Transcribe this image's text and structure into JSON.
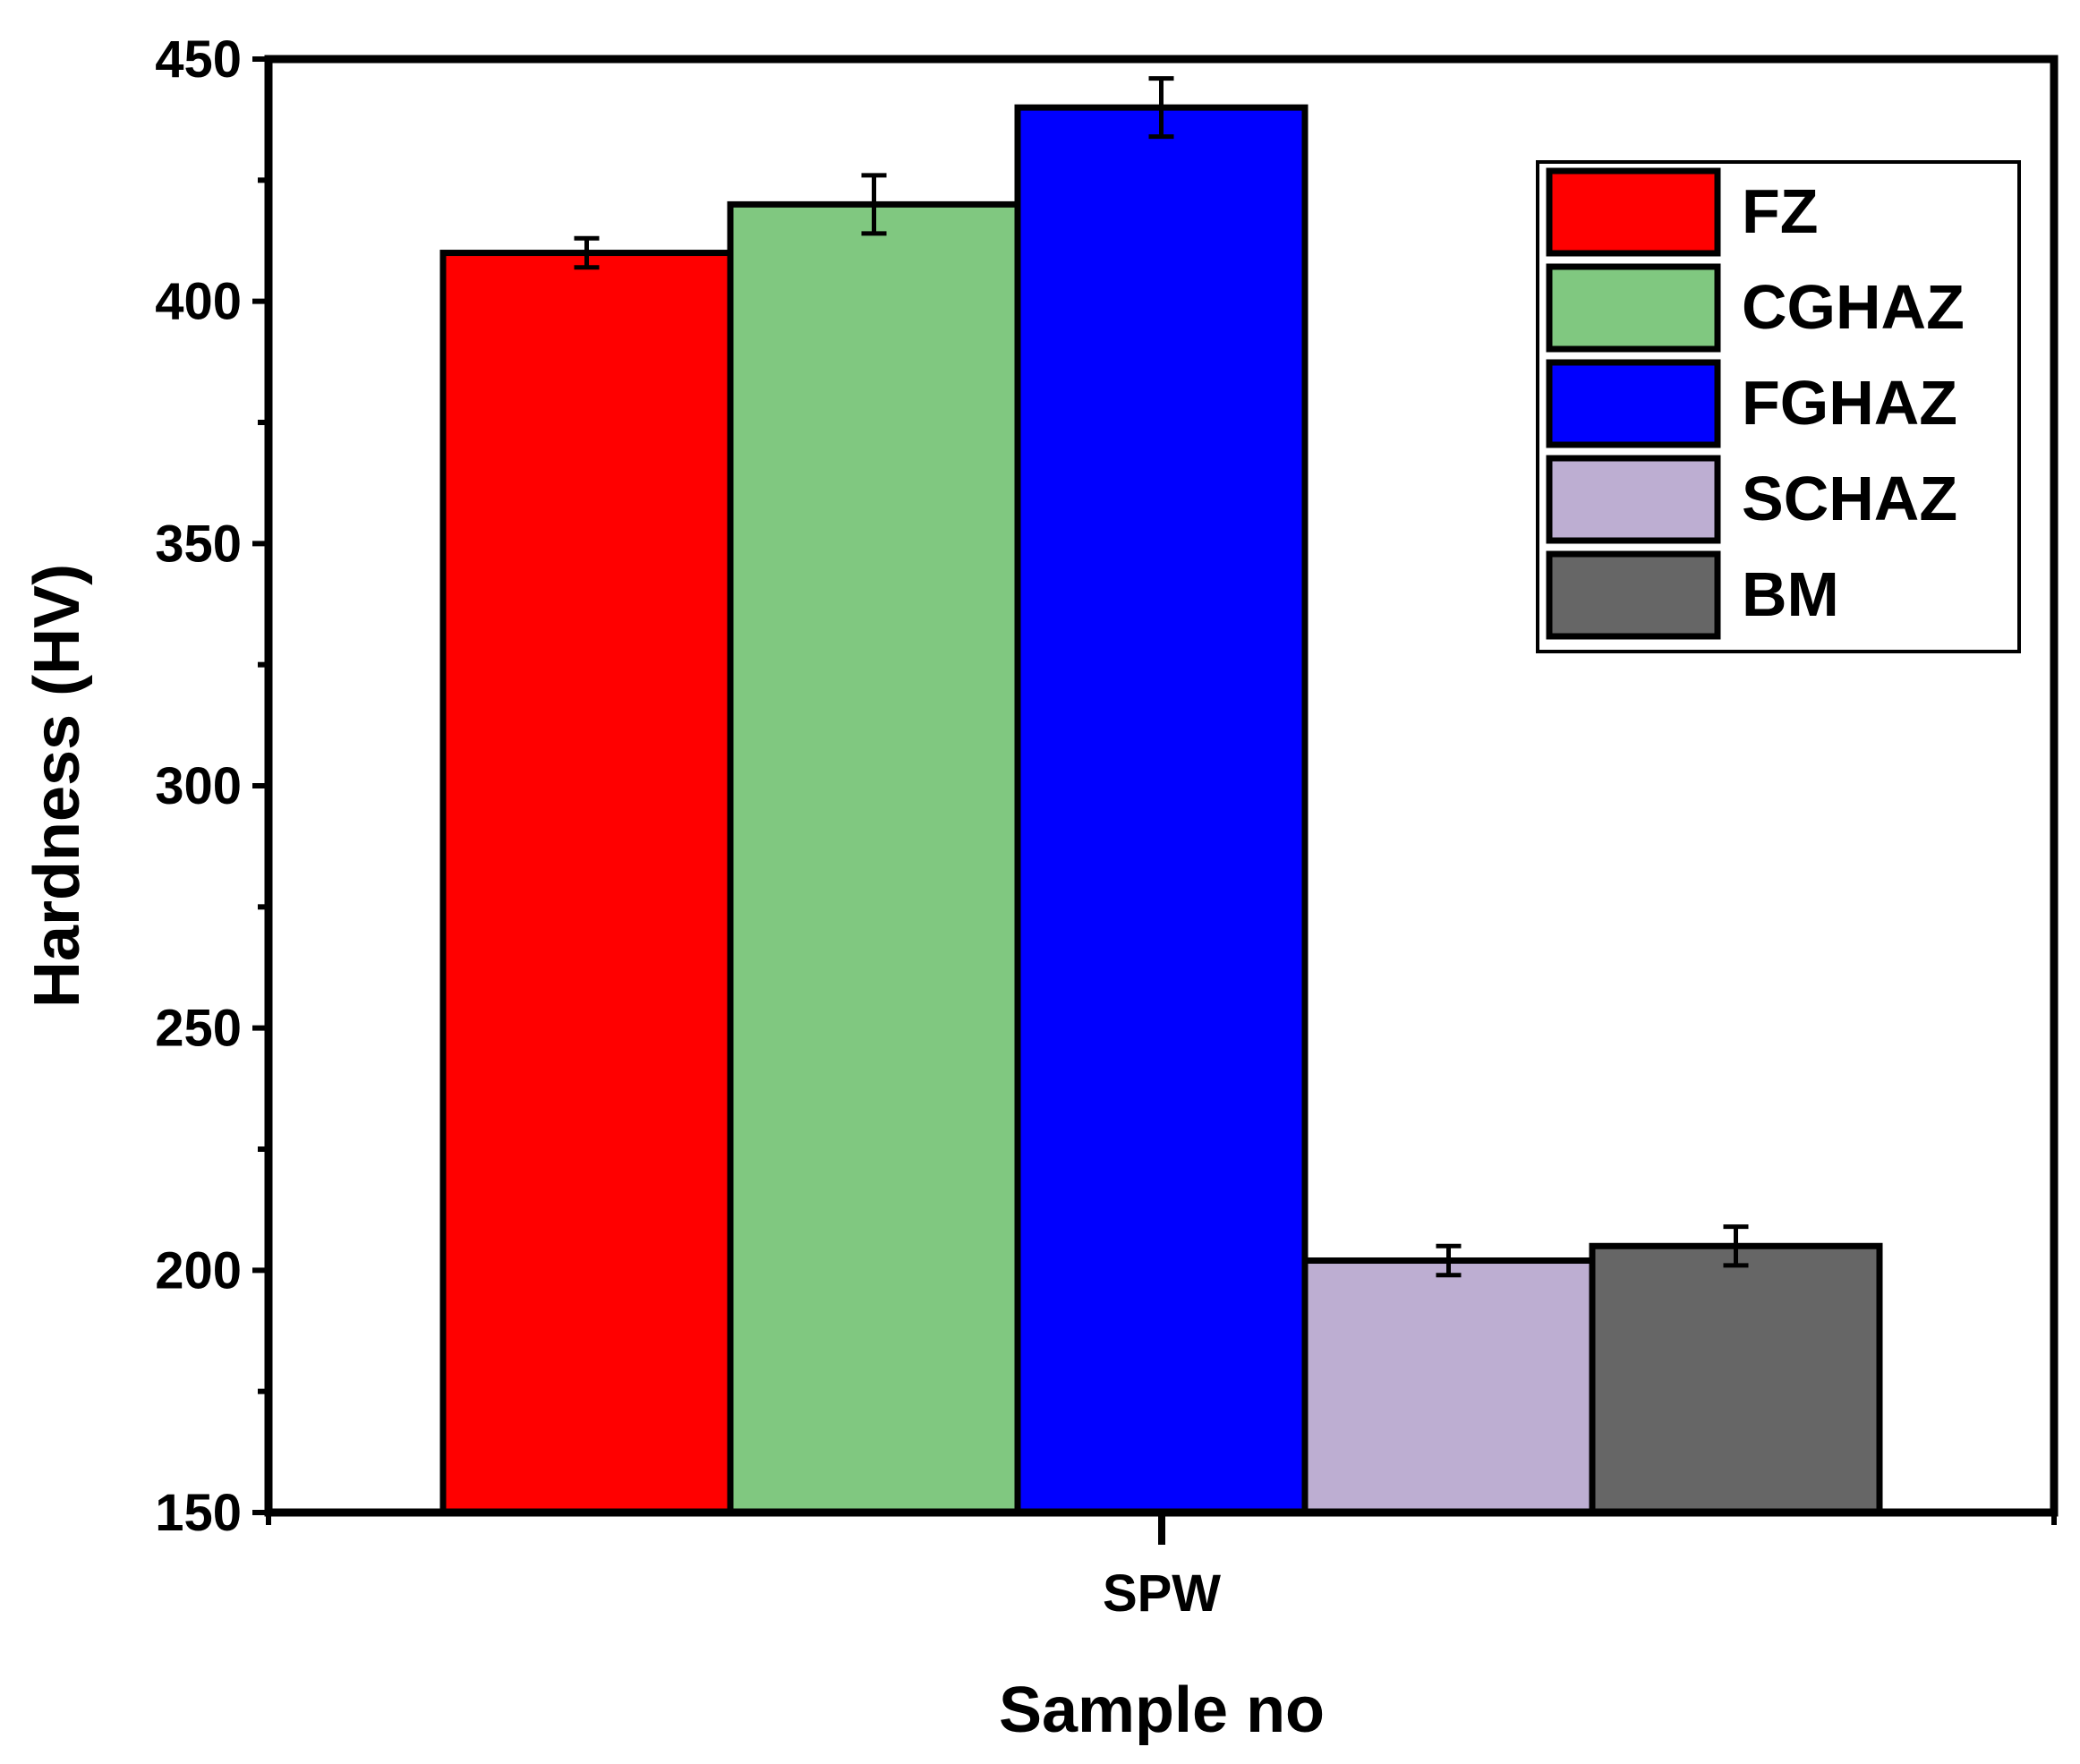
{
  "chart_data": {
    "type": "bar",
    "xlabel": "Sample no",
    "ylabel": "Hardness (HV)",
    "categories": [
      "SPW"
    ],
    "ylim": [
      150,
      450
    ],
    "yticks": [
      150,
      200,
      250,
      300,
      350,
      400,
      450
    ],
    "legend_position": "top-right",
    "series": [
      {
        "name": "FZ",
        "color": "#ff0000",
        "values": [
          410
        ],
        "error": [
          3
        ]
      },
      {
        "name": "CGHAZ",
        "color": "#80c880",
        "values": [
          420
        ],
        "error": [
          6
        ]
      },
      {
        "name": "FGHAZ",
        "color": "#0000ff",
        "values": [
          440
        ],
        "error": [
          6
        ]
      },
      {
        "name": "SCHAZ",
        "color": "#bdaed2",
        "values": [
          202
        ],
        "error": [
          3
        ]
      },
      {
        "name": "BM",
        "color": "#666666",
        "values": [
          205
        ],
        "error": [
          4
        ]
      }
    ]
  }
}
